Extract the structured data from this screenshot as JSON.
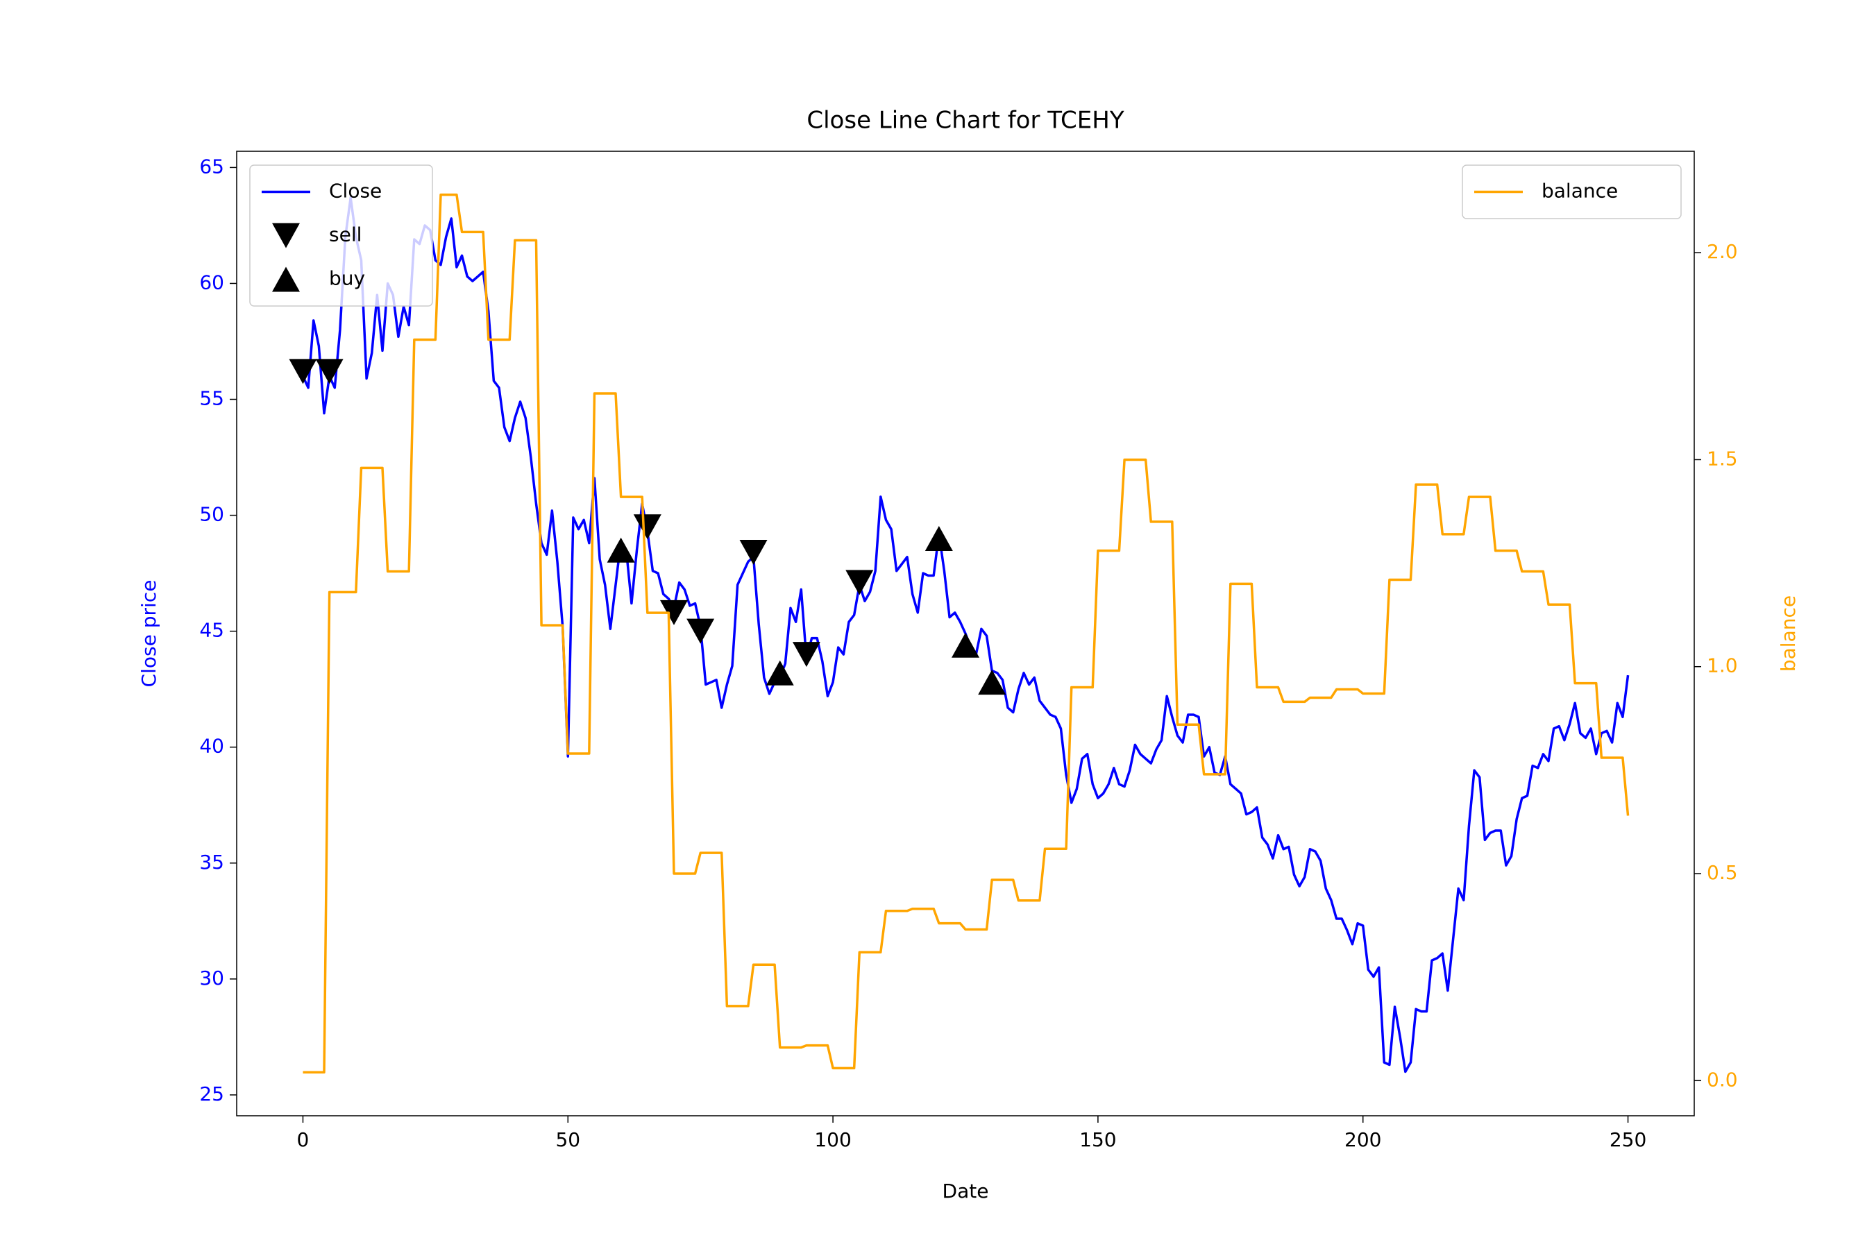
{
  "chart_data": {
    "type": "line",
    "title": "Close Line Chart for TCEHY",
    "x_label": "Date",
    "y_label": "Close price",
    "y2_label": "balance",
    "xlim": [
      -12.5,
      262.5
    ],
    "xticks": [
      0,
      50,
      100,
      150,
      200,
      250
    ],
    "ylim": [
      24.1,
      65.7
    ],
    "yticks": [
      25,
      30,
      35,
      40,
      45,
      50,
      55,
      60,
      65
    ],
    "y_color": "#0000ff",
    "y2lim": [
      -0.085,
      2.245
    ],
    "y2ticks": [
      {
        "value": 0,
        "label": "0.0"
      },
      {
        "value": 0.5,
        "label": "0.5"
      },
      {
        "value": 1,
        "label": "1.0"
      },
      {
        "value": 1.5,
        "label": "1.5"
      },
      {
        "value": 2,
        "label": "2.0"
      }
    ],
    "y2_color": "#ffa500",
    "legend": "upper left",
    "legend2": "upper right",
    "series": [
      {
        "name": "Close",
        "type": "line",
        "color": "#0000ff",
        "x": [
          0,
          1,
          2,
          3,
          4,
          5,
          6,
          7,
          8,
          9,
          10,
          11,
          12,
          13,
          14,
          15,
          16,
          17,
          18,
          19,
          20,
          21,
          22,
          23,
          24,
          25,
          26,
          27,
          28,
          29,
          30,
          31,
          32,
          33,
          34,
          35,
          36,
          37,
          38,
          39,
          40,
          41,
          42,
          43,
          44,
          45,
          46,
          47,
          48,
          49,
          50,
          51,
          52,
          53,
          54,
          55,
          56,
          57,
          58,
          59,
          60,
          61,
          62,
          63,
          64,
          65,
          66,
          67,
          68,
          69,
          70,
          71,
          72,
          73,
          74,
          75,
          76,
          77,
          78,
          79,
          80,
          81,
          82,
          83,
          84,
          85,
          86,
          87,
          88,
          89,
          90,
          91,
          92,
          93,
          94,
          95,
          96,
          97,
          98,
          99,
          100,
          101,
          102,
          103,
          104,
          105,
          106,
          107,
          108,
          109,
          110,
          111,
          112,
          113,
          114,
          115,
          116,
          117,
          118,
          119,
          120,
          121,
          122,
          123,
          124,
          125,
          126,
          127,
          128,
          129,
          130,
          131,
          132,
          133,
          134,
          135,
          136,
          137,
          138,
          139,
          140,
          141,
          142,
          143,
          144,
          145,
          146,
          147,
          148,
          149,
          150,
          151,
          152,
          153,
          154,
          155,
          156,
          157,
          158,
          159,
          160,
          161,
          162,
          163,
          164,
          165,
          166,
          167,
          168,
          169,
          170,
          171,
          172,
          173,
          174,
          175,
          176,
          177,
          178,
          179,
          180,
          181,
          182,
          183,
          184,
          185,
          186,
          187,
          188,
          189,
          190,
          191,
          192,
          193,
          194,
          195,
          196,
          197,
          198,
          199,
          200,
          201,
          202,
          203,
          204,
          205,
          206,
          207,
          208,
          209,
          210,
          211,
          212,
          213,
          214,
          215,
          216,
          217,
          218,
          219,
          220,
          221,
          222,
          223,
          224,
          225,
          226,
          227,
          228,
          229,
          230,
          231,
          232,
          233,
          234,
          235,
          236,
          237,
          238,
          239,
          240,
          241,
          242,
          243,
          244,
          245,
          246,
          247,
          248,
          249,
          250
        ],
        "values": [
          56,
          55.5,
          58.4,
          57.3,
          54.4,
          56,
          55.5,
          58,
          62,
          63.7,
          62,
          61,
          55.9,
          57,
          59.5,
          57.1,
          60,
          59.5,
          57.7,
          59,
          58.2,
          61.9,
          61.7,
          62.5,
          62.3,
          61,
          60.8,
          62,
          62.8,
          60.7,
          61.2,
          60.3,
          60.1,
          60.3,
          60.5,
          58.8,
          55.8,
          55.5,
          53.8,
          53.2,
          54.2,
          54.9,
          54.2,
          52.5,
          50.5,
          48.8,
          48.3,
          50.2,
          48,
          45.2,
          39.6,
          49.9,
          49.4,
          49.8,
          48.8,
          51.6,
          48.1,
          47,
          45.1,
          47,
          48.9,
          48.5,
          46.2,
          48.5,
          50.5,
          49.3,
          47.6,
          47.5,
          46.6,
          46.4,
          46,
          47.1,
          46.8,
          46.1,
          46.2,
          45.2,
          42.7,
          42.8,
          42.9,
          41.7,
          42.7,
          43.5,
          47,
          47.5,
          48,
          48.2,
          45.3,
          43,
          42.3,
          42.8,
          43,
          43.6,
          46,
          45.4,
          46.8,
          43.8,
          44.7,
          44.7,
          43.7,
          42.2,
          42.8,
          44.3,
          44,
          45.4,
          45.7,
          47,
          46.3,
          46.7,
          47.6,
          50.8,
          49.8,
          49.4,
          47.6,
          47.9,
          48.2,
          46.6,
          45.8,
          47.5,
          47.4,
          47.4,
          49.2,
          47.6,
          45.6,
          45.8,
          45.4,
          44.9,
          44.3,
          44,
          45.1,
          44.8,
          43.3,
          43.2,
          42.9,
          41.7,
          41.5,
          42.5,
          43.2,
          42.7,
          43,
          42,
          41.7,
          41.4,
          41.3,
          40.8,
          38.8,
          37.6,
          38.2,
          39.5,
          39.7,
          38.4,
          37.8,
          38,
          38.4,
          39.1,
          38.4,
          38.3,
          39,
          40.1,
          39.7,
          39.5,
          39.3,
          39.9,
          40.3,
          42.2,
          41.3,
          40.5,
          40.2,
          41.4,
          41.4,
          41.3,
          39.6,
          40,
          38.9,
          38.8,
          39.6,
          38.4,
          38.2,
          38,
          37.1,
          37.2,
          37.4,
          36.1,
          35.8,
          35.2,
          36.2,
          35.6,
          35.7,
          34.5,
          34,
          34.4,
          35.6,
          35.5,
          35.1,
          33.9,
          33.4,
          32.6,
          32.6,
          32.1,
          31.5,
          32.4,
          32.3,
          30.4,
          30.1,
          30.5,
          26.4,
          26.3,
          28.8,
          27.5,
          26,
          26.4,
          28.7,
          28.6,
          28.6,
          30.8,
          30.9,
          31.1,
          29.5,
          31.7,
          33.9,
          33.4,
          36.6,
          39,
          38.7,
          36,
          36.3,
          36.4,
          36.4,
          34.9,
          35.3,
          36.9,
          37.8,
          37.9,
          39.2,
          39.1,
          39.7,
          39.4,
          40.8,
          40.9,
          40.3,
          41,
          41.9,
          40.6,
          40.4,
          40.8,
          39.7,
          40.6,
          40.7,
          40.2,
          41.9,
          41.3,
          43.1
        ]
      },
      {
        "name": "sell",
        "type": "scatter",
        "marker": "v",
        "color": "#000000",
        "x": [
          0,
          5,
          65,
          70,
          75,
          85,
          95,
          105
        ],
        "values": [
          56.2,
          56.2,
          49.5,
          45.8,
          45,
          48.4,
          44,
          47.1
        ]
      },
      {
        "name": "buy",
        "type": "scatter",
        "marker": "^",
        "color": "#000000",
        "x": [
          60,
          90,
          120,
          125,
          130
        ],
        "values": [
          48.5,
          43.2,
          49,
          44.4,
          42.8
        ]
      },
      {
        "name": "balance",
        "type": "line",
        "axis": "y2",
        "color": "#ffa500",
        "x": [
          0,
          4,
          5,
          10,
          11,
          15,
          16,
          20,
          21,
          25,
          26,
          29,
          30,
          34,
          35,
          39,
          40,
          44,
          45,
          49,
          50,
          54,
          55,
          59,
          60,
          64,
          65,
          69,
          70,
          74,
          75,
          79,
          80,
          84,
          85,
          89,
          90,
          94,
          95,
          99,
          100,
          104,
          105,
          109,
          110,
          114,
          115,
          119,
          120,
          124,
          125,
          129,
          130,
          134,
          135,
          139,
          140,
          144,
          145,
          149,
          150,
          154,
          155,
          159,
          160,
          164,
          165,
          169,
          170,
          174,
          175,
          179,
          180,
          184,
          185,
          189,
          190,
          194,
          195,
          199,
          200,
          204,
          205,
          209,
          210,
          214,
          215,
          219,
          220,
          224,
          225,
          229,
          230,
          234,
          235,
          239,
          240,
          244,
          245,
          249,
          250
        ],
        "values": [
          0.02,
          0.02,
          1.18,
          1.18,
          1.48,
          1.48,
          1.23,
          1.23,
          1.79,
          1.79,
          2.14,
          2.14,
          2.05,
          2.05,
          1.79,
          1.79,
          2.03,
          2.03,
          1.1,
          1.1,
          0.79,
          0.79,
          1.66,
          1.66,
          1.41,
          1.41,
          1.13,
          1.13,
          0.5,
          0.5,
          0.55,
          0.55,
          0.18,
          0.18,
          0.28,
          0.28,
          0.08,
          0.08,
          0.085,
          0.085,
          0.03,
          0.03,
          0.31,
          0.31,
          0.41,
          0.41,
          0.415,
          0.415,
          0.38,
          0.38,
          0.365,
          0.365,
          0.485,
          0.485,
          0.435,
          0.435,
          0.56,
          0.56,
          0.95,
          0.95,
          1.28,
          1.28,
          1.5,
          1.5,
          1.35,
          1.35,
          0.86,
          0.86,
          0.74,
          0.74,
          1.2,
          1.2,
          0.95,
          0.95,
          0.915,
          0.915,
          0.925,
          0.925,
          0.945,
          0.945,
          0.935,
          0.935,
          1.21,
          1.21,
          1.44,
          1.44,
          1.32,
          1.32,
          1.41,
          1.41,
          1.28,
          1.28,
          1.23,
          1.23,
          1.15,
          1.15,
          0.96,
          0.96,
          0.78,
          0.78,
          0.64
        ]
      }
    ]
  }
}
